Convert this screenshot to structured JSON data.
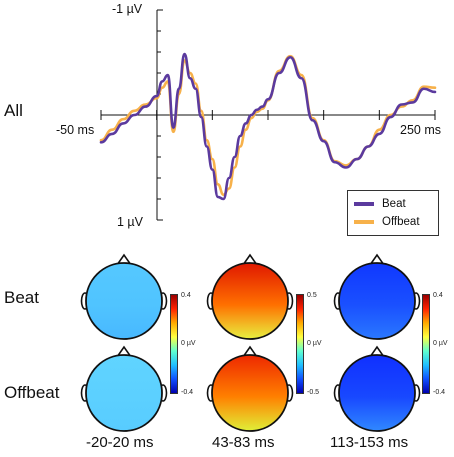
{
  "erp": {
    "row_label": "All",
    "y_top_label": "-1 µV",
    "y_bottom_label": "1 µV",
    "x_left_label": "-50 ms",
    "x_right_label": "250 ms"
  },
  "legend": {
    "items": [
      {
        "label": "Beat",
        "color": "#5b3a9e"
      },
      {
        "label": "Offbeat",
        "color": "#f7b14a"
      }
    ]
  },
  "chart_data": {
    "type": "line",
    "x_unit": "ms",
    "y_unit": "µV",
    "y_axis_inverted": true,
    "xlim": [
      -50,
      250
    ],
    "ylim": [
      -1,
      1
    ],
    "series": [
      {
        "name": "Beat",
        "color": "#5b3a9e",
        "x": [
          -50,
          -40,
          -30,
          -20,
          -10,
          0,
          5,
          10,
          15,
          20,
          25,
          30,
          35,
          40,
          45,
          50,
          55,
          60,
          65,
          70,
          75,
          80,
          85,
          90,
          95,
          100,
          110,
          120,
          130,
          140,
          150,
          160,
          170,
          180,
          190,
          200,
          210,
          220,
          230,
          240,
          250
        ],
        "y": [
          0.26,
          0.18,
          0.08,
          0,
          -0.08,
          -0.18,
          -0.32,
          -0.38,
          0.12,
          -0.25,
          -0.58,
          -0.35,
          -0.25,
          0.02,
          0.3,
          0.52,
          0.78,
          0.8,
          0.6,
          0.4,
          0.2,
          0.08,
          0.0,
          -0.05,
          -0.08,
          -0.15,
          -0.4,
          -0.55,
          -0.35,
          0.05,
          0.25,
          0.45,
          0.5,
          0.42,
          0.3,
          0.18,
          0.02,
          -0.1,
          -0.12,
          -0.25,
          -0.22
        ]
      },
      {
        "name": "Offbeat",
        "color": "#f7b14a",
        "x": [
          -50,
          -40,
          -30,
          -20,
          -10,
          0,
          5,
          10,
          15,
          20,
          25,
          30,
          35,
          40,
          45,
          50,
          55,
          60,
          65,
          70,
          75,
          80,
          85,
          90,
          95,
          100,
          110,
          120,
          130,
          140,
          150,
          160,
          170,
          180,
          190,
          200,
          210,
          220,
          230,
          240,
          250
        ],
        "y": [
          0.24,
          0.14,
          0.04,
          -0.04,
          -0.1,
          -0.16,
          -0.26,
          -0.32,
          0.16,
          -0.2,
          -0.52,
          -0.4,
          -0.3,
          -0.04,
          0.24,
          0.42,
          0.66,
          0.76,
          0.7,
          0.5,
          0.3,
          0.14,
          0.03,
          -0.03,
          -0.06,
          -0.14,
          -0.42,
          -0.56,
          -0.38,
          0.03,
          0.24,
          0.44,
          0.48,
          0.42,
          0.3,
          0.14,
          0.0,
          -0.08,
          -0.14,
          -0.27,
          -0.26
        ]
      }
    ]
  },
  "topomaps": {
    "rows": [
      {
        "label": "Beat",
        "scales": [
          {
            "top": "0.4",
            "mid": "0 µV",
            "bottom": "-0.4"
          },
          {
            "top": "0.5",
            "mid": "0 µV",
            "bottom": "-0.5"
          },
          {
            "top": "0.4",
            "mid": "0 µV",
            "bottom": "-0.4"
          }
        ]
      },
      {
        "label": "Offbeat"
      }
    ],
    "windows": [
      "-20-20 ms",
      "43-83 ms",
      "113-153 ms"
    ],
    "maps": [
      [
        {
          "front": "#55c8ff",
          "back": "#48b8ff",
          "mid": "#50c4ff"
        },
        {
          "front": "#e01800",
          "back": "#e8f040",
          "mid": "#ff7000"
        },
        {
          "front": "#1038ff",
          "back": "#2a78ff",
          "mid": "#1a50ff"
        }
      ],
      [
        {
          "front": "#60d4ff",
          "back": "#58ccff",
          "mid": "#5cd0ff"
        },
        {
          "front": "#ee2800",
          "back": "#e0f038",
          "mid": "#ff8000"
        },
        {
          "front": "#1030ff",
          "back": "#3088ff",
          "mid": "#1848ff"
        }
      ]
    ]
  }
}
